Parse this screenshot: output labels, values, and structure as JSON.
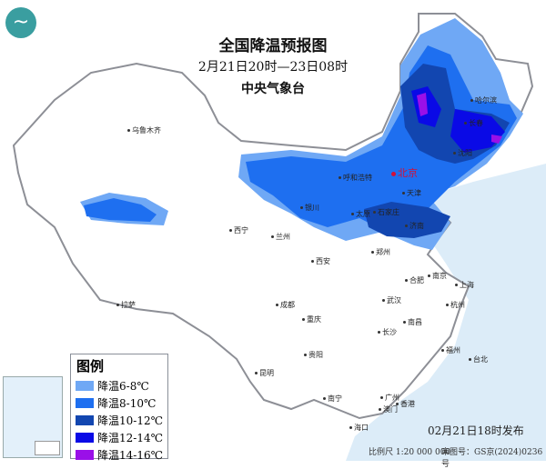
{
  "header": {
    "title": "全国降温预报图",
    "period": "2月21日20时—23日08时",
    "issuer": "中央气象台"
  },
  "legend": {
    "title": "图例",
    "items": [
      {
        "label": "降温6-8℃",
        "color": "#6fa8f5"
      },
      {
        "label": "降温8-10℃",
        "color": "#1e6ff0"
      },
      {
        "label": "降温10-12℃",
        "color": "#1246b0"
      },
      {
        "label": "降温12-14℃",
        "color": "#0a0ae6"
      },
      {
        "label": "降温14-16℃",
        "color": "#9a10e8"
      }
    ]
  },
  "cities": [
    "乌鲁木齐",
    "拉萨",
    "西宁",
    "兰州",
    "银川",
    "呼和浩特",
    "北京",
    "天津",
    "太原",
    "石家庄",
    "济南",
    "郑州",
    "西安",
    "成都",
    "重庆",
    "武汉",
    "合肥",
    "南京",
    "上海",
    "杭州",
    "南昌",
    "长沙",
    "贵阳",
    "昆明",
    "南宁",
    "广州",
    "澳门",
    "香港",
    "海口",
    "福州",
    "台北",
    "哈尔滨",
    "长春",
    "沈阳"
  ],
  "footer": {
    "published": "02月21日18时发布",
    "scale": "比例尺 1:20 000 000",
    "review_no": "审图号：GS京(2024)0236号"
  },
  "colors": {
    "sea": "#dcecf8",
    "land": "#ffffff",
    "border": "#8d8f96"
  }
}
